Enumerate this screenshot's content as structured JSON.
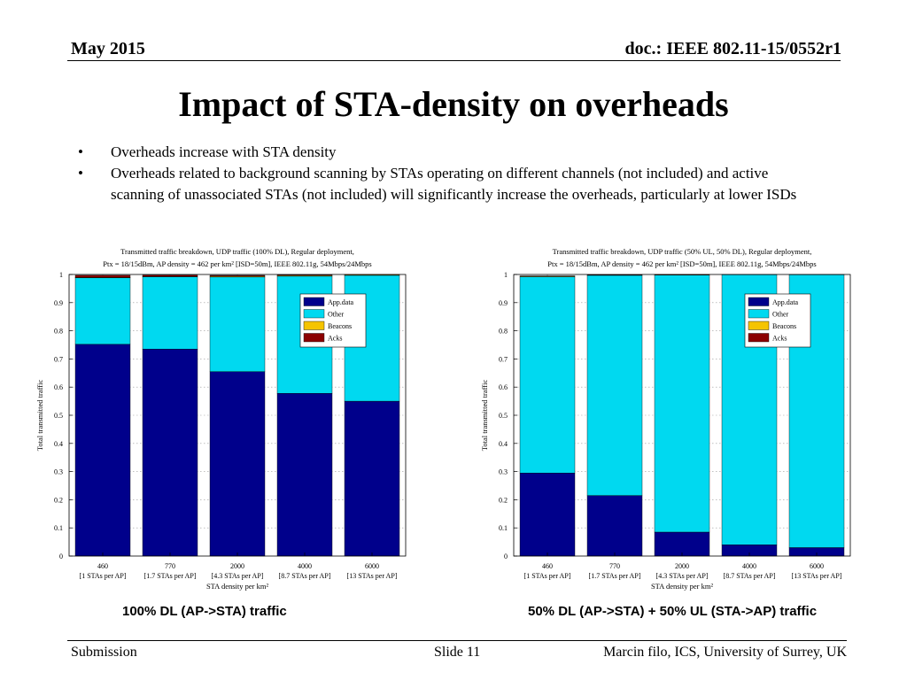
{
  "header": {
    "date": "May 2015",
    "doc": "doc.: IEEE 802.11-15/0552r1"
  },
  "title": "Impact of STA-density on overheads",
  "bullets": [
    "Overheads increase with STA density",
    "Overheads related to background scanning by STAs operating on different channels (not included) and active scanning of unassociated STAs (not included) will significantly increase the overheads, particularly at lower ISDs"
  ],
  "bullet_symbol": "•",
  "chart_data": [
    {
      "type": "bar",
      "stacked": true,
      "title_lines": [
        "Transmitted traffic breakdown, UDP traffic (100% DL), Regular deployment,",
        "Ptx = 18/15dBm, AP density = 462 per km² [ISD=50m], IEEE 802.11g, 54Mbps/24Mbps"
      ],
      "xlabel": "STA density per km²",
      "ylabel": "Total transmitted traffic",
      "ylim": [
        0,
        1
      ],
      "yticks": [
        "0",
        "0.1",
        "0.2",
        "0.3",
        "0.4",
        "0.5",
        "0.6",
        "0.7",
        "0.8",
        "0.9",
        "1"
      ],
      "grid": true,
      "legend_position": "top-right",
      "categories": [
        "460",
        "770",
        "2000",
        "4000",
        "6000"
      ],
      "category_sublabels": [
        "[1 STAs per AP]",
        "[1.7 STAs per AP]",
        "[4.3 STAs per AP]",
        "[8.7 STAs per AP]",
        "[13 STAs per AP]"
      ],
      "series": [
        {
          "name": "App.data",
          "color": "#00008B",
          "values": [
            0.752,
            0.735,
            0.655,
            0.578,
            0.55
          ]
        },
        {
          "name": "Other",
          "color": "#00D9F0",
          "values": [
            0.236,
            0.257,
            0.336,
            0.416,
            0.447
          ]
        },
        {
          "name": "Beacons",
          "color": "#F5C400",
          "values": [
            0.002,
            0.001,
            0.003,
            0.003,
            0.002
          ]
        },
        {
          "name": "Acks",
          "color": "#8B0000",
          "values": [
            0.007,
            0.005,
            0.003,
            0.002,
            0.001
          ]
        }
      ],
      "caption": "100% DL (AP->STA) traffic"
    },
    {
      "type": "bar",
      "stacked": true,
      "title_lines": [
        "Transmitted traffic breakdown, UDP traffic (50% UL, 50% DL), Regular deployment,",
        "Ptx = 18/15dBm, AP density = 462 per km² [ISD=50m], IEEE 802.11g, 54Mbps/24Mbps"
      ],
      "xlabel": "STA density per km²",
      "ylabel": "Total transmitted traffic",
      "ylim": [
        0,
        1
      ],
      "yticks": [
        "0",
        "0.1",
        "0.2",
        "0.3",
        "0.4",
        "0.5",
        "0.6",
        "0.7",
        "0.8",
        "0.9",
        "1"
      ],
      "grid": true,
      "legend_position": "top-right",
      "categories": [
        "460",
        "770",
        "2000",
        "4000",
        "6000"
      ],
      "category_sublabels": [
        "[1 STAs per AP]",
        "[1.7 STAs per AP]",
        "[4.3 STAs per AP]",
        "[8.7 STAs per AP]",
        "[13 STAs per AP]"
      ],
      "series": [
        {
          "name": "App.data",
          "color": "#00008B",
          "values": [
            0.295,
            0.215,
            0.085,
            0.04,
            0.03
          ]
        },
        {
          "name": "Other",
          "color": "#00D9F0",
          "values": [
            0.697,
            0.782,
            0.913,
            0.959,
            0.969
          ]
        },
        {
          "name": "Beacons",
          "color": "#F5C400",
          "values": [
            0.002,
            0.001,
            0.001,
            0.0005,
            0.0005
          ]
        },
        {
          "name": "Acks",
          "color": "#8B0000",
          "values": [
            0.001,
            0.001,
            0.001,
            0.0005,
            0.0005
          ]
        }
      ],
      "caption": "50% DL (AP->STA) + 50% UL (STA->AP) traffic"
    }
  ],
  "footer": {
    "left": "Submission",
    "center": "Slide 11",
    "right": "Marcin filo, ICS, University of Surrey, UK"
  }
}
